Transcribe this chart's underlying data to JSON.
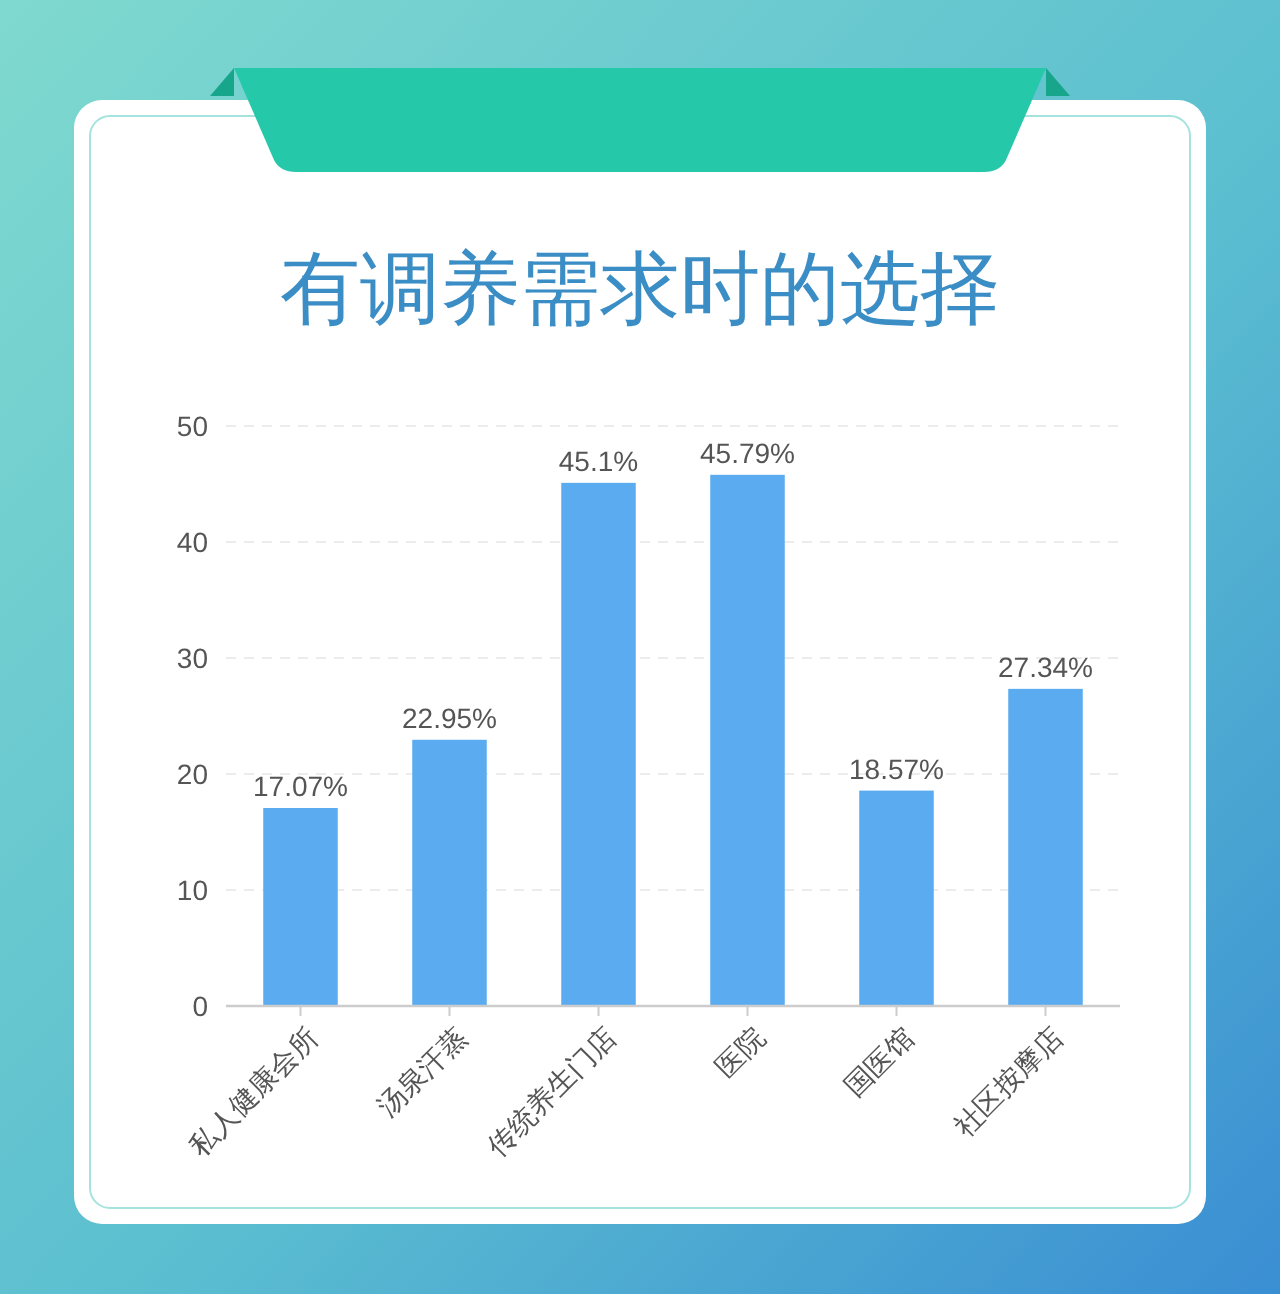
{
  "chart_data": {
    "type": "bar",
    "title": "有调养需求时的选择",
    "categories": [
      "私人健康会所",
      "汤泉汗蒸",
      "传统养生门店",
      "医院",
      "国医馆",
      "社区按摩店"
    ],
    "values": [
      17.07,
      22.95,
      45.1,
      45.79,
      18.57,
      27.34
    ],
    "value_labels": [
      "17.07%",
      "22.95%",
      "45.1%",
      "45.79%",
      "18.57%",
      "27.34%"
    ],
    "color": "#5aabf0",
    "ylim": [
      0,
      50
    ],
    "yticks": [
      0,
      10,
      20,
      30,
      40,
      50
    ],
    "grid": "y"
  }
}
